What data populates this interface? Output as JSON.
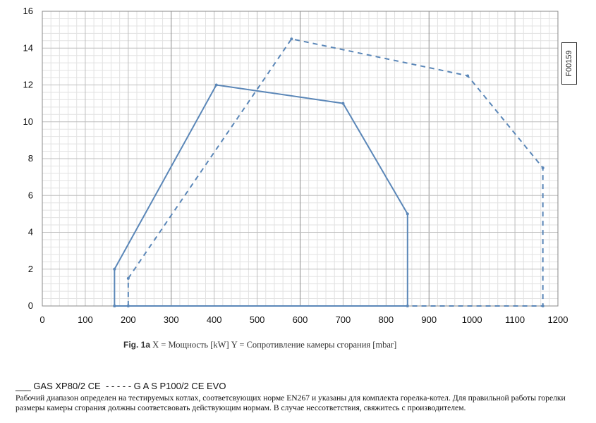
{
  "chart_data": {
    "type": "line",
    "xlim": [
      0,
      1200
    ],
    "ylim": [
      0,
      16
    ],
    "x_ticks": [
      "0",
      "100",
      "200",
      "300",
      "400",
      "500",
      "600",
      "700",
      "800",
      "900",
      "1000",
      "1100",
      "1200"
    ],
    "y_ticks": [
      "0",
      "2",
      "4",
      "6",
      "8",
      "10",
      "12",
      "14",
      "16"
    ],
    "grid": true,
    "series": [
      {
        "name": "GAS XP80/2 CE",
        "style": "solid",
        "color": "#5b87b8",
        "points": [
          [
            168,
            0
          ],
          [
            168,
            2
          ],
          [
            405,
            12
          ],
          [
            700,
            11
          ],
          [
            850,
            5
          ],
          [
            850,
            0
          ],
          [
            168,
            0
          ]
        ]
      },
      {
        "name": "G A S P100/2 CE EVO",
        "style": "dashed",
        "color": "#5b87b8",
        "points": [
          [
            200,
            0
          ],
          [
            200,
            1.5
          ],
          [
            580,
            14.5
          ],
          [
            990,
            12.5
          ],
          [
            1165,
            7.5
          ],
          [
            1165,
            0
          ],
          [
            200,
            0
          ]
        ]
      }
    ]
  },
  "caption": {
    "fig": "Fig. 1a",
    "text": " X = Мощность [kW] Y = Сопротивление камеры сгорания [mbar]"
  },
  "legend": {
    "solid_marker": "___",
    "solid_label": " GAS XP80/2 CE ",
    "dashed_marker": "- - - - -",
    "dashed_label": " G A S P100/2 CE EVO"
  },
  "note": "Рабочий диапазон определен на тестируемых котлах, соответсвующих норме EN267 и указаны для комплекта горелка-котел. Для правильной работы горелки размеры камеры сгорания должны соответсвовать действующим нормам. В случае нессответствия, свяжитесь с производителем.",
  "code_label": "F00159"
}
